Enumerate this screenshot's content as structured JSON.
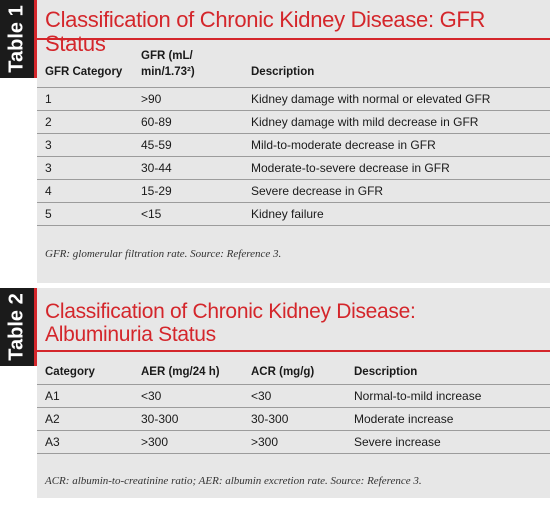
{
  "table1": {
    "tab_label": "Table 1",
    "title": "Classification of Chronic Kidney Disease: GFR Status",
    "headers": [
      "GFR Category",
      "GFR (mL/",
      "min/1.73²)",
      "Description"
    ],
    "rows": [
      [
        "1",
        ">90",
        "Kidney damage with normal or elevated GFR"
      ],
      [
        "2",
        "60-89",
        "Kidney damage with mild decrease in GFR"
      ],
      [
        "3",
        "45-59",
        "Mild-to-moderate decrease in GFR"
      ],
      [
        "3",
        "30-44",
        "Moderate-to-severe decrease in GFR"
      ],
      [
        "4",
        "15-29",
        "Severe decrease in GFR"
      ],
      [
        "5",
        "<15",
        "Kidney failure"
      ]
    ],
    "footnote": "GFR: glomerular filtration rate. Source: Reference 3."
  },
  "table2": {
    "tab_label": "Table 2",
    "title_line1": "Classification of Chronic Kidney Disease:",
    "title_line2": "Albuminuria Status",
    "headers": [
      "Category",
      "AER (mg/24 h)",
      "ACR (mg/g)",
      "Description"
    ],
    "rows": [
      [
        "A1",
        "<30",
        "<30",
        "Normal-to-mild increase"
      ],
      [
        "A2",
        "30-300",
        "30-300",
        "Moderate increase"
      ],
      [
        "A3",
        ">300",
        ">300",
        "Severe increase"
      ]
    ],
    "footnote": "ACR: albumin-to-creatinine ratio; AER: albumin excretion rate. Source: Reference 3."
  },
  "colors": {
    "accent": "#d4262b",
    "tab_bg": "#1b1b1b",
    "panel_bg": "#e7e7e7"
  }
}
